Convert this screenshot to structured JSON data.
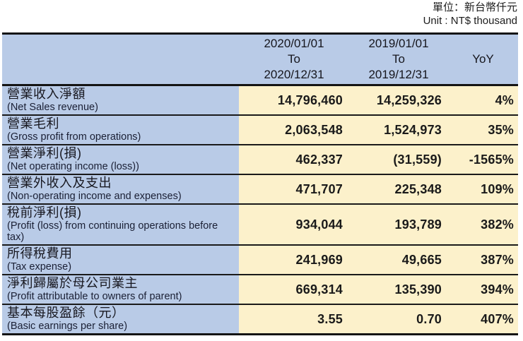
{
  "unit_note": {
    "zh": "單位：新台幣仟元",
    "en": "Unit : NT$ thousand"
  },
  "colors": {
    "label_bg": "#b9cbe7",
    "value_bg": "#fcf1cb",
    "border": "#141414",
    "text": "#1c1c1c"
  },
  "table": {
    "header": {
      "period_2020": {
        "line1": "2020/01/01",
        "line2": "To",
        "line3": "2020/12/31"
      },
      "period_2019": {
        "line1": "2019/01/01",
        "line2": "To",
        "line3": "2019/12/31"
      },
      "yoy": "YoY"
    },
    "rows": [
      {
        "zh": "營業收入淨額",
        "en": "(Net Sales revenue)",
        "v2020": "14,796,460",
        "v2019": "14,259,326",
        "yoy": "4%"
      },
      {
        "zh": "營業毛利",
        "en": "(Gross profit from operations)",
        "v2020": "2,063,548",
        "v2019": "1,524,973",
        "yoy": "35%"
      },
      {
        "zh": "營業淨利(損)",
        "en": "(Net operating income (loss))",
        "v2020": "462,337",
        "v2019": "(31,559)",
        "yoy": "-1565%"
      },
      {
        "zh": "營業外收入及支出",
        "en": "(Non-operating income and expenses)",
        "v2020": "471,707",
        "v2019": "225,348",
        "yoy": "109%"
      },
      {
        "zh": "稅前淨利(損)",
        "en": "(Profit (loss) from continuing operations before tax)",
        "v2020": "934,044",
        "v2019": "193,789",
        "yoy": "382%"
      },
      {
        "zh": "所得稅費用",
        "en": "(Tax expense)",
        "v2020": "241,969",
        "v2019": "49,665",
        "yoy": "387%"
      },
      {
        "zh": "淨利歸屬於母公司業主",
        "en": "(Profit attributable to owners of parent)",
        "v2020": "669,314",
        "v2019": "135,390",
        "yoy": "394%"
      },
      {
        "zh": "基本每股盈餘（元）",
        "en": "(Basic earnings per share)",
        "v2020": "3.55",
        "v2019": "0.70",
        "yoy": "407%"
      }
    ]
  }
}
